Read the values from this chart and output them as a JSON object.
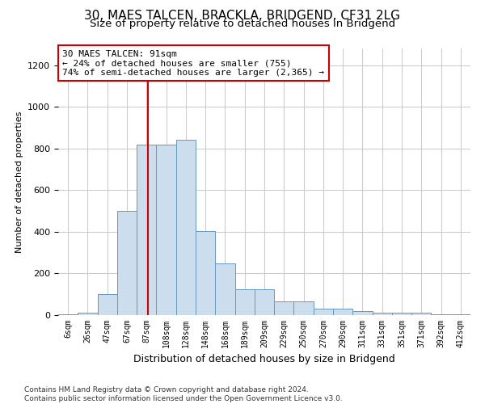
{
  "title1": "30, MAES TALCEN, BRACKLA, BRIDGEND, CF31 2LG",
  "title2": "Size of property relative to detached houses in Bridgend",
  "xlabel": "Distribution of detached houses by size in Bridgend",
  "ylabel": "Number of detached properties",
  "footer1": "Contains HM Land Registry data © Crown copyright and database right 2024.",
  "footer2": "Contains public sector information licensed under the Open Government Licence v3.0.",
  "annotation_title": "30 MAES TALCEN: 91sqm",
  "annotation_line1": "← 24% of detached houses are smaller (755)",
  "annotation_line2": "74% of semi-detached houses are larger (2,365) →",
  "bar_color": "#ccdded",
  "bar_edge_color": "#6699bb",
  "redline_color": "#cc0000",
  "annotation_box_color": "#ffffff",
  "annotation_box_edge": "#cc0000",
  "categories": [
    "6sqm",
    "26sqm",
    "47sqm",
    "67sqm",
    "87sqm",
    "108sqm",
    "128sqm",
    "148sqm",
    "168sqm",
    "189sqm",
    "209sqm",
    "229sqm",
    "250sqm",
    "270sqm",
    "290sqm",
    "311sqm",
    "331sqm",
    "351sqm",
    "371sqm",
    "392sqm",
    "412sqm"
  ],
  "values": [
    5,
    10,
    100,
    500,
    820,
    820,
    840,
    405,
    250,
    125,
    125,
    65,
    65,
    30,
    30,
    20,
    10,
    10,
    10,
    5,
    2
  ],
  "redline_after_bar": 4,
  "ylim": [
    0,
    1280
  ],
  "yticks": [
    0,
    200,
    400,
    600,
    800,
    1000,
    1200
  ],
  "grid_color": "#cccccc",
  "title1_fontsize": 11,
  "title2_fontsize": 9.5,
  "ylabel_fontsize": 8,
  "xlabel_fontsize": 9,
  "footer_fontsize": 6.5,
  "annotation_fontsize": 8,
  "xtick_fontsize": 7,
  "ytick_fontsize": 8
}
